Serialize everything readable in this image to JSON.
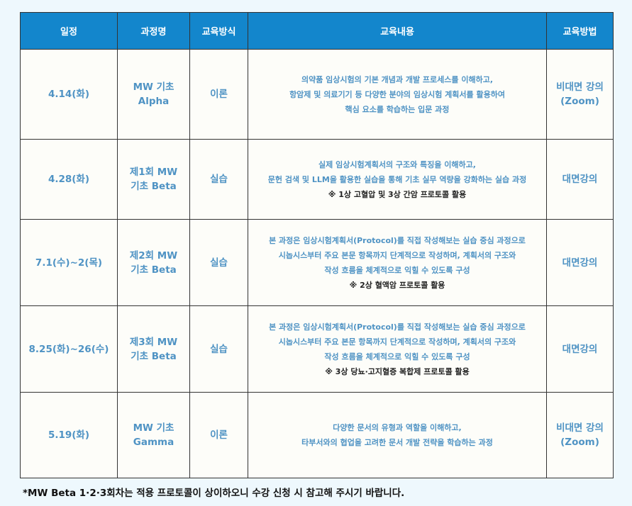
{
  "headers": [
    "일정",
    "과정명",
    "교육방식",
    "교육내용",
    "교육방법"
  ],
  "rows": [
    {
      "date": "4.14(화)",
      "course": [
        "MW 기초",
        "Alpha"
      ],
      "type": "이론",
      "content": [
        "의약품 임상시험의 기본 개념과 개발 프로세스를 이해하고,",
        "항암제 및 의료기기 등 다양한 분야의 임상시험 계획서를 활용하여",
        "핵심 요소를 학습하는 입문 과정"
      ],
      "note": "",
      "method": [
        "비대면 강의",
        "(Zoom)"
      ]
    },
    {
      "date": "4.28(화)",
      "course": [
        "제1회 MW",
        "기초 Beta"
      ],
      "type": "실습",
      "content": [
        "실제 임상시험계획서의 구조와 특징을 이해하고,",
        "문헌 검색 및 LLM을 활용한 실습을 통해 기초 실무 역량을 강화하는 실습 과정"
      ],
      "note": "※ 1상 고혈압 및 3상 간암 프로토콜 활용",
      "method": [
        "대면강의",
        ""
      ]
    },
    {
      "date": "7.1(수)~2(목)",
      "course": [
        "제2회 MW",
        "기초 Beta"
      ],
      "type": "실습",
      "content": [
        "본 과정은 임상시험계획서(Protocol)를 직접 작성해보는 실습 중심 과정으로",
        "시놉시스부터 주요 본문 항목까지 단계적으로 작성하며, 계획서의 구조와",
        "작성 흐름을 체계적으로 익힐 수 있도록 구성"
      ],
      "note": "※ 2상 혈액암 프로토콜 활용",
      "method": [
        "대면강의",
        ""
      ]
    },
    {
      "date": "8.25(화)~26(수)",
      "course": [
        "제3회 MW",
        "기초 Beta"
      ],
      "type": "실습",
      "content": [
        "본 과정은 임상시험계획서(Protocol)를 직접 작성해보는 실습 중심 과정으로",
        "시놉시스부터 주요 본문 항목까지 단계적으로 작성하며, 계획서의 구조와",
        "작성 흐름을 체계적으로 익힐 수 있도록 구성"
      ],
      "note": "※ 3상 당뇨·고지혈증 복합제 프로토콜 활용",
      "method": [
        "대면강의",
        ""
      ]
    },
    {
      "date": "5.19(화)",
      "course": [
        "MW 기초",
        "Gamma"
      ],
      "type": "이론",
      "content": [
        "다양한 문서의 유형과 역할을 이해하고,",
        "타부서와의 협업을 고려한 문서 개발 전략을 학습하는 과정"
      ],
      "note": "",
      "method": [
        "비대면 강의",
        "(Zoom)"
      ]
    }
  ],
  "footnote": "*MW Beta 1·2·3회차는 적용 프로토콜이 상이하오니 수강 신청 시 참고해 주시기 바랍니다.",
  "colors": {
    "header_bg": "#1386cc",
    "cell_text": "#4f93c4",
    "page_bg": "#eef8fd"
  }
}
